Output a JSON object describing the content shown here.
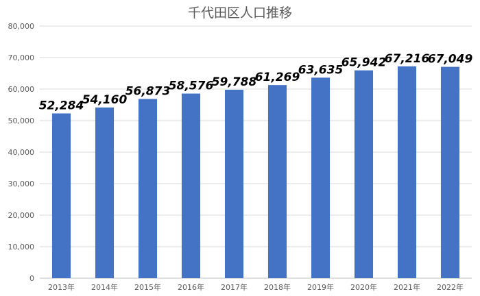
{
  "chart_data": {
    "type": "bar",
    "title": "千代田区人口推移",
    "categories": [
      "2013年",
      "2014年",
      "2015年",
      "2016年",
      "2017年",
      "2018年",
      "2019年",
      "2020年",
      "2021年",
      "2022年"
    ],
    "values": [
      52284,
      54160,
      56873,
      58576,
      59788,
      61269,
      63635,
      65942,
      67216,
      67049
    ],
    "data_labels": [
      "52,284",
      "54,160",
      "56,873",
      "58,576",
      "59,788",
      "61,269",
      "63,635",
      "65,942",
      "67,216",
      "67,049"
    ],
    "y_ticks": [
      "0",
      "10,000",
      "20,000",
      "30,000",
      "40,000",
      "50,000",
      "60,000",
      "70,000",
      "80,000"
    ],
    "ylim": [
      0,
      80000
    ],
    "grid": true,
    "legend": "none",
    "bar_color": "#4472C4",
    "grid_color": "#D9D9D9"
  }
}
